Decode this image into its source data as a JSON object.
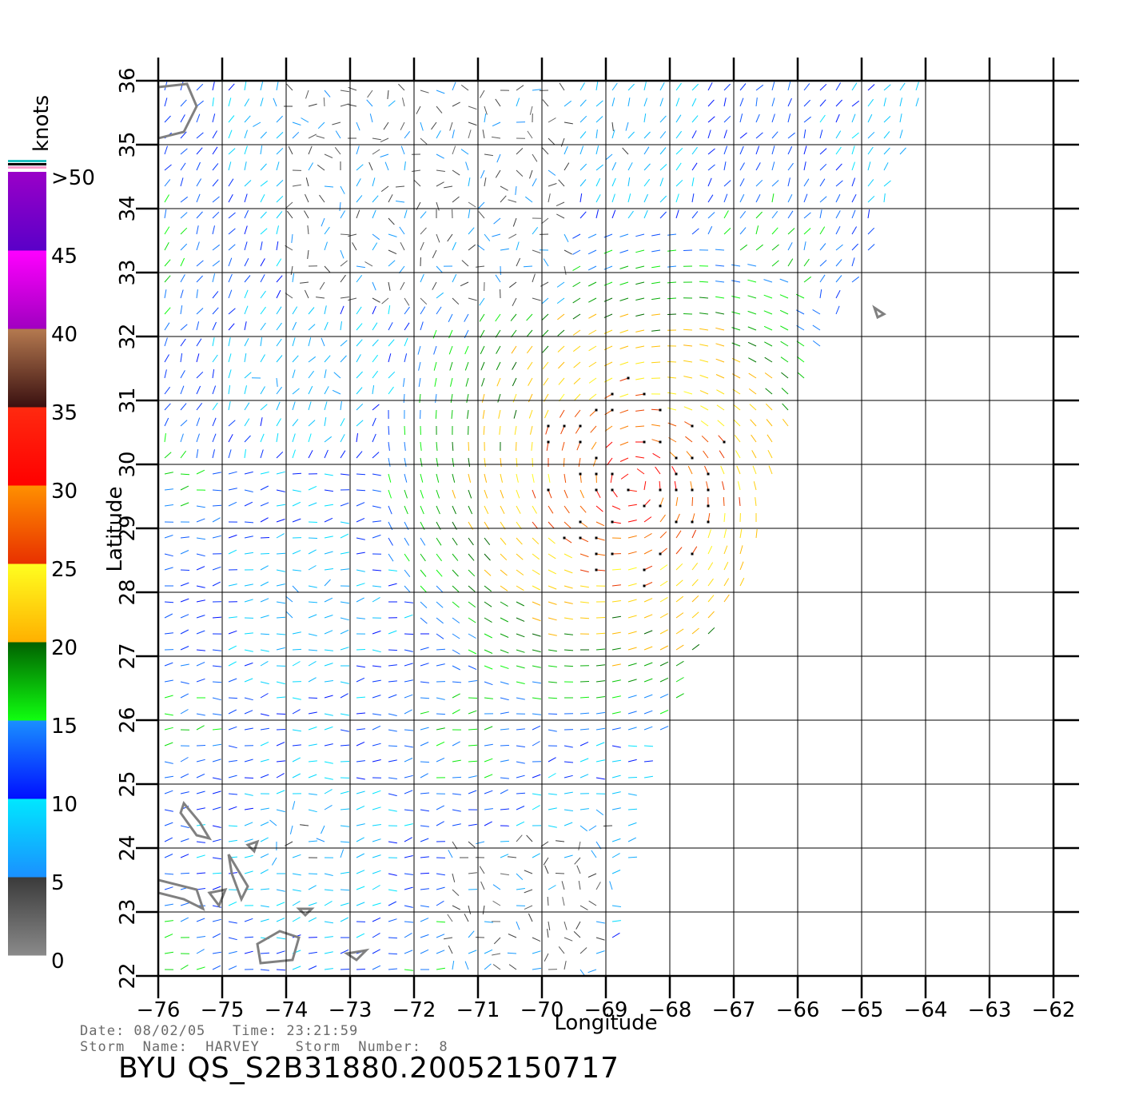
{
  "map": {
    "lon_min": -76,
    "lon_max": -62,
    "lat_min": 22,
    "lat_max": 36,
    "lon_ticks": [
      -76,
      -75,
      -74,
      -73,
      -72,
      -71,
      -70,
      -69,
      -68,
      -67,
      -66,
      -65,
      -64,
      -63,
      -62
    ],
    "lat_ticks": [
      22,
      23,
      24,
      25,
      26,
      27,
      28,
      29,
      30,
      31,
      32,
      33,
      34,
      35,
      36
    ],
    "xlabel": "Longitude",
    "ylabel": "Latitude",
    "grid": true,
    "swath_east_edge": [
      [
        -64.0,
        36
      ],
      [
        -65.0,
        33
      ],
      [
        -66.0,
        31
      ],
      [
        -66.9,
        28
      ],
      [
        -67.6,
        27
      ],
      [
        -68.4,
        25
      ],
      [
        -69.0,
        22
      ]
    ],
    "land_outlines": "gray",
    "storm_center": {
      "lon": -68.6,
      "lat": 29.7
    }
  },
  "colorbar": {
    "unit": "knots",
    "labels": [
      ">50",
      "45",
      "40",
      "35",
      "30",
      "25",
      "20",
      "15",
      "10",
      "5",
      "0"
    ],
    "bands": [
      {
        "from": 0,
        "to": 5,
        "top": "#3a3a3a",
        "bottom": "#8a8a8a"
      },
      {
        "from": 5,
        "to": 10,
        "top": "#00e8ff",
        "bottom": "#1a90ff"
      },
      {
        "from": 10,
        "to": 15,
        "top": "#1a90ff",
        "bottom": "#0010ff"
      },
      {
        "from": 15,
        "to": 20,
        "top": "#006000",
        "bottom": "#10ff10"
      },
      {
        "from": 20,
        "to": 25,
        "top": "#ffff20",
        "bottom": "#ffb000"
      },
      {
        "from": 25,
        "to": 30,
        "top": "#ff9000",
        "bottom": "#e83000"
      },
      {
        "from": 30,
        "to": 35,
        "top": "#ff2a10",
        "bottom": "#ff0000"
      },
      {
        "from": 35,
        "to": 40,
        "top": "#b57a50",
        "bottom": "#3a1010"
      },
      {
        "from": 40,
        "to": 45,
        "top": "#ff00ff",
        "bottom": "#a000c0"
      },
      {
        "from": 45,
        "to": 50,
        "top": "#9a00c8",
        "bottom": "#5a00c8"
      }
    ],
    "overflow_colors": [
      "#20c0c0",
      "#000000",
      "#ff99cc"
    ]
  },
  "info": {
    "line1": "Date: 08/02/05   Time: 23:21:59",
    "line2": "Storm  Name:  HARVEY    Storm  Number:  8",
    "file_id": "BYU  QS_S2B31880.20052150717"
  }
}
